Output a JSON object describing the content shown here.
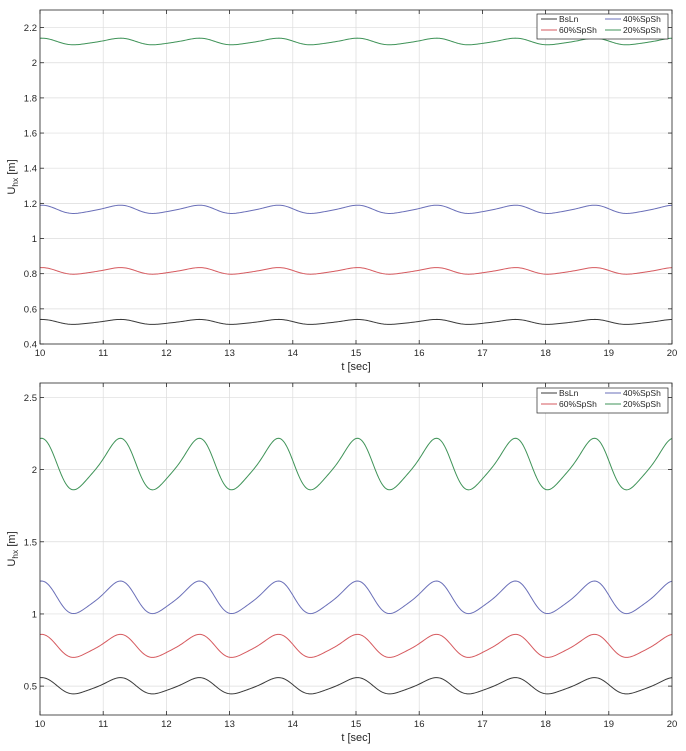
{
  "chart_data": [
    {
      "type": "line",
      "xlabel": "t [sec]",
      "ylabel_main": "U",
      "ylabel_sub": "hx",
      "ylabel_unit": " [m]",
      "xlim": [
        10,
        20
      ],
      "ylim": [
        0.4,
        2.3
      ],
      "xticks": [
        10,
        11,
        12,
        13,
        14,
        15,
        16,
        17,
        18,
        19,
        20
      ],
      "xtick_labels": [
        "10",
        "11",
        "12",
        "13",
        "14",
        "15",
        "16",
        "17",
        "18",
        "19",
        "20"
      ],
      "yticks": [
        0.4,
        0.6,
        0.8,
        1,
        1.2,
        1.4,
        1.6,
        1.8,
        2,
        2.2
      ],
      "ytick_labels": [
        "0.4",
        "0.6",
        "0.8",
        "1",
        "1.2",
        "1.4",
        "1.6",
        "1.8",
        "2",
        "2.2"
      ],
      "grid": true,
      "legend_position": "top-right",
      "period": 1.25,
      "series": [
        {
          "name": "BsLn",
          "color": "#3a3a3a",
          "min": 0.51,
          "max": 0.54
        },
        {
          "name": "40%SpSh",
          "color": "#6a6fb8",
          "min": 1.14,
          "max": 1.19
        },
        {
          "name": "60%SpSh",
          "color": "#d65a5f",
          "min": 0.795,
          "max": 0.835
        },
        {
          "name": "20%SpSh",
          "color": "#3f9358",
          "min": 2.1,
          "max": 2.14
        }
      ]
    },
    {
      "type": "line",
      "xlabel": "t [sec]",
      "ylabel_main": "U",
      "ylabel_sub": "hx",
      "ylabel_unit": " [m]",
      "xlim": [
        10,
        20
      ],
      "ylim": [
        0.3,
        2.6
      ],
      "xticks": [
        10,
        11,
        12,
        13,
        14,
        15,
        16,
        17,
        18,
        19,
        20
      ],
      "xtick_labels": [
        "10",
        "11",
        "12",
        "13",
        "14",
        "15",
        "16",
        "17",
        "18",
        "19",
        "20"
      ],
      "yticks": [
        0.5,
        1,
        1.5,
        2,
        2.5
      ],
      "ytick_labels": [
        "0.5",
        "1",
        "1.5",
        "2",
        "2.5"
      ],
      "grid": true,
      "legend_position": "top-right",
      "period": 1.25,
      "series": [
        {
          "name": "BsLn",
          "color": "#3a3a3a",
          "min": 0.44,
          "max": 0.56
        },
        {
          "name": "40%SpSh",
          "color": "#6a6fb8",
          "min": 0.99,
          "max": 1.23
        },
        {
          "name": "60%SpSh",
          "color": "#d65a5f",
          "min": 0.69,
          "max": 0.86
        },
        {
          "name": "20%SpSh",
          "color": "#3f9358",
          "min": 1.84,
          "max": 2.22
        }
      ]
    }
  ]
}
